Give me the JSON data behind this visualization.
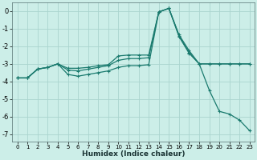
{
  "xlabel": "Humidex (Indice chaleur)",
  "background_color": "#cceee8",
  "grid_color": "#aad4ce",
  "line_color": "#1a7a6e",
  "xlim": [
    -0.5,
    23.5
  ],
  "ylim": [
    -7.4,
    0.5
  ],
  "yticks": [
    0,
    -1,
    -2,
    -3,
    -4,
    -5,
    -6,
    -7
  ],
  "xticks": [
    0,
    1,
    2,
    3,
    4,
    5,
    6,
    7,
    8,
    9,
    10,
    11,
    12,
    13,
    14,
    15,
    16,
    17,
    18,
    19,
    20,
    21,
    22,
    23
  ],
  "line1_x": [
    0,
    1,
    2,
    3,
    4,
    5,
    6,
    7,
    8,
    9,
    10,
    11,
    12,
    13,
    14,
    15,
    16,
    17,
    18,
    19,
    20,
    21,
    22,
    23
  ],
  "line1_y": [
    -3.8,
    -3.8,
    -3.3,
    -3.2,
    -3.0,
    -3.25,
    -3.25,
    -3.2,
    -3.1,
    -3.05,
    -2.55,
    -2.5,
    -2.5,
    -2.5,
    -0.05,
    0.15,
    -1.35,
    -2.25,
    -3.0,
    -3.0,
    -3.0,
    -3.0,
    -3.0,
    -3.0
  ],
  "line2_x": [
    0,
    1,
    2,
    3,
    4,
    5,
    6,
    7,
    8,
    9,
    10,
    11,
    12,
    13,
    14,
    15,
    16,
    17,
    18,
    19,
    20,
    21,
    22,
    23
  ],
  "line2_y": [
    -3.8,
    -3.8,
    -3.3,
    -3.2,
    -3.0,
    -3.35,
    -3.4,
    -3.3,
    -3.2,
    -3.1,
    -2.8,
    -2.7,
    -2.7,
    -2.65,
    -0.05,
    0.15,
    -1.4,
    -2.35,
    -3.0,
    -4.5,
    -5.7,
    -5.85,
    -6.2,
    -6.8
  ],
  "line3_x": [
    0,
    1,
    2,
    3,
    4,
    5,
    6,
    7,
    8,
    9,
    10,
    11,
    12,
    13,
    14,
    15,
    16,
    17,
    18,
    19,
    20,
    21,
    22,
    23
  ],
  "line3_y": [
    -3.8,
    -3.8,
    -3.3,
    -3.2,
    -3.0,
    -3.6,
    -3.7,
    -3.6,
    -3.5,
    -3.4,
    -3.2,
    -3.1,
    -3.1,
    -3.05,
    -0.05,
    0.15,
    -1.45,
    -2.4,
    -3.0,
    -3.0,
    -3.0,
    -3.0,
    -3.0,
    -3.0
  ]
}
